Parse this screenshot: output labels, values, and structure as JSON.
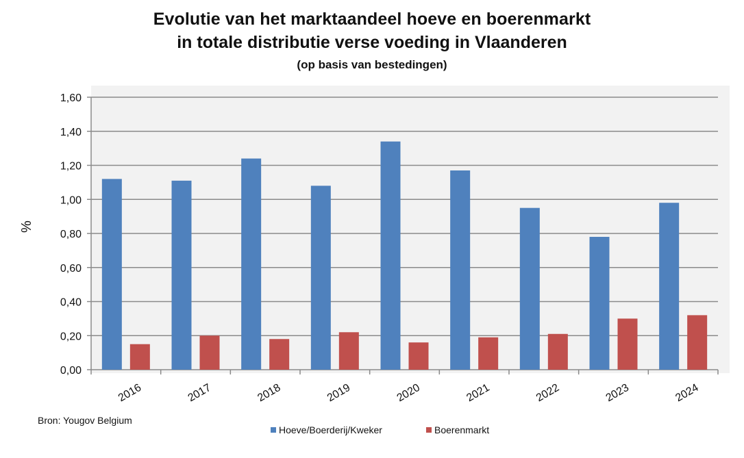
{
  "chart_data": {
    "type": "bar",
    "title_line1": "Evolutie van het marktaandeel hoeve en boerenmarkt",
    "title_line2": "in totale distributie verse voeding in Vlaanderen",
    "subtitle": "(op basis van bestedingen)",
    "ylabel": "%",
    "xlabel": "",
    "ylim": [
      0,
      1.6
    ],
    "yticks": [
      "0,00",
      "0,20",
      "0,40",
      "0,60",
      "0,80",
      "1,00",
      "1,20",
      "1,40",
      "1,60"
    ],
    "ytick_values": [
      0,
      0.2,
      0.4,
      0.6,
      0.8,
      1.0,
      1.2,
      1.4,
      1.6
    ],
    "categories": [
      "2016",
      "2017",
      "2018",
      "2019",
      "2020",
      "2021",
      "2022",
      "2023",
      "2024"
    ],
    "series": [
      {
        "name": "Hoeve/Boerderij/Kweker",
        "color": "#4f81bd",
        "values": [
          1.12,
          1.11,
          1.24,
          1.08,
          1.34,
          1.17,
          0.95,
          0.78,
          0.98
        ]
      },
      {
        "name": "Boerenmarkt",
        "color": "#c0504d",
        "values": [
          0.15,
          0.2,
          0.18,
          0.22,
          0.16,
          0.19,
          0.21,
          0.3,
          0.32
        ]
      }
    ],
    "grid": true,
    "legend_position": "bottom"
  },
  "source": "Bron: Yougov Belgium"
}
